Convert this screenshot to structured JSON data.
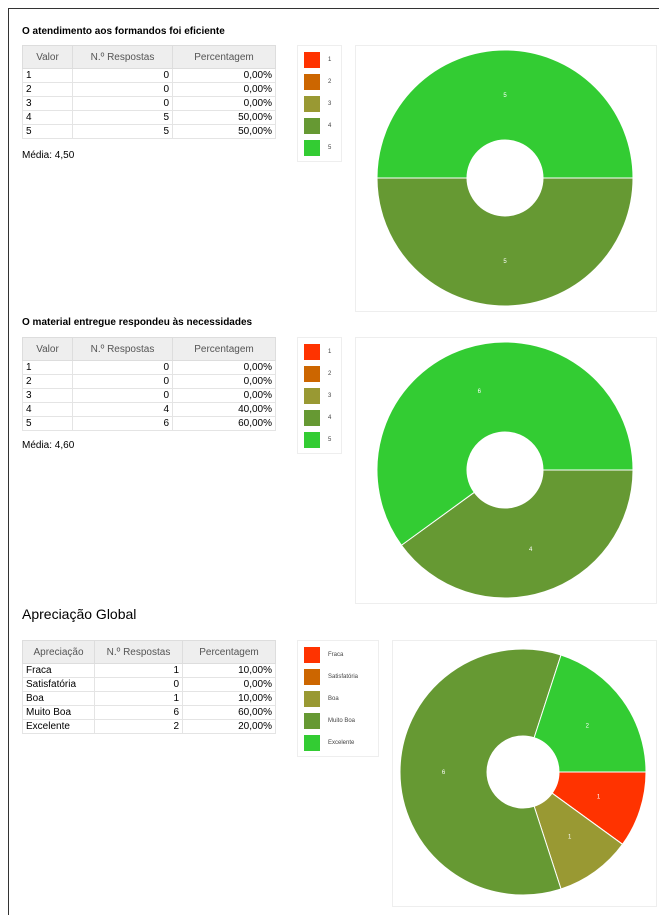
{
  "sections": [
    {
      "title": "O atendimento aos formandos foi eficiente",
      "table": {
        "header": [
          "Valor",
          "N.º Respostas",
          "Percentagem"
        ],
        "rows": [
          [
            "1",
            "0",
            "0,00%"
          ],
          [
            "2",
            "0",
            "0,00%"
          ],
          [
            "3",
            "0",
            "0,00%"
          ],
          [
            "4",
            "5",
            "50,00%"
          ],
          [
            "5",
            "5",
            "50,00%"
          ]
        ]
      },
      "mean": "Média: 4,50",
      "chart": {
        "type": "pie",
        "categories": [
          "1",
          "2",
          "3",
          "4",
          "5"
        ],
        "colors": [
          "#ff3300",
          "#cc6600",
          "#999933",
          "#669933",
          "#33cc33"
        ],
        "values": [
          0,
          0,
          0,
          5,
          5
        ]
      }
    },
    {
      "title": "O material entregue respondeu às necessidades",
      "table": {
        "header": [
          "Valor",
          "N.º Respostas",
          "Percentagem"
        ],
        "rows": [
          [
            "1",
            "0",
            "0,00%"
          ],
          [
            "2",
            "0",
            "0,00%"
          ],
          [
            "3",
            "0",
            "0,00%"
          ],
          [
            "4",
            "4",
            "40,00%"
          ],
          [
            "5",
            "6",
            "60,00%"
          ]
        ]
      },
      "mean": "Média: 4,60",
      "chart": {
        "type": "pie",
        "categories": [
          "1",
          "2",
          "3",
          "4",
          "5"
        ],
        "colors": [
          "#ff3300",
          "#cc6600",
          "#999933",
          "#669933",
          "#33cc33"
        ],
        "values": [
          0,
          0,
          0,
          4,
          6
        ]
      }
    },
    {
      "title": "Apreciação Global",
      "table": {
        "header": [
          "Apreciação",
          "N.º Respostas",
          "Percentagem"
        ],
        "rows": [
          [
            "Fraca",
            "1",
            "10,00%"
          ],
          [
            "Satisfatória",
            "0",
            "0,00%"
          ],
          [
            "Boa",
            "1",
            "10,00%"
          ],
          [
            "Muito Boa",
            "6",
            "60,00%"
          ],
          [
            "Excelente",
            "2",
            "20,00%"
          ]
        ]
      },
      "chart": {
        "type": "pie",
        "categories": [
          "Fraca",
          "Satisfatória",
          "Boa",
          "Muito Boa",
          "Excelente"
        ],
        "colors": [
          "#ff3300",
          "#cc6600",
          "#999933",
          "#669933",
          "#33cc33"
        ],
        "values": [
          1,
          0,
          1,
          6,
          2
        ]
      }
    }
  ]
}
